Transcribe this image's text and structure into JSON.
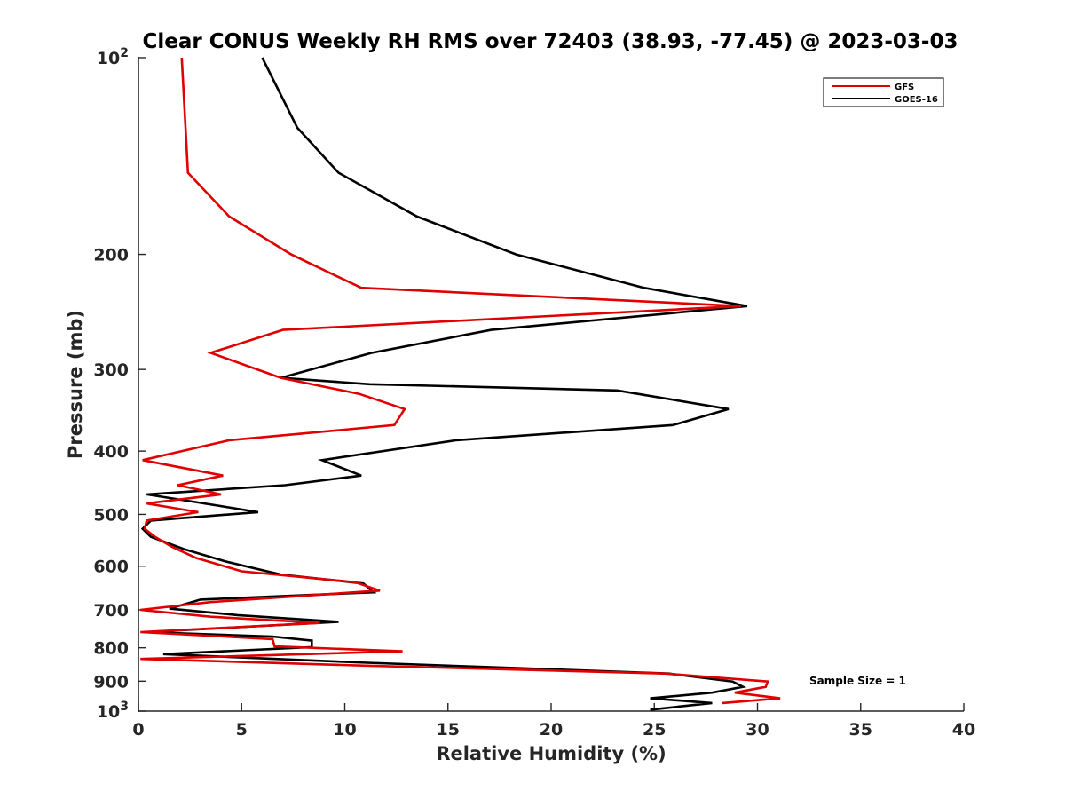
{
  "chart_data": {
    "type": "line",
    "title": "Clear CONUS Weekly RH RMS over 72403 (38.93, -77.45) @ 2023-03-03",
    "xlabel": "Relative Humidity (%)",
    "ylabel": "Pressure (mb)",
    "xlim": [
      0,
      40
    ],
    "ylim": [
      100,
      1000
    ],
    "y_scale": "log",
    "y_direction": "reversed",
    "x_ticks": [
      "0",
      "5",
      "10",
      "15",
      "20",
      "25",
      "30",
      "35",
      "40"
    ],
    "y_ticks": [
      {
        "value": 100,
        "base": "10",
        "exp": "2"
      },
      {
        "value": 200,
        "label": "200"
      },
      {
        "value": 300,
        "label": "300"
      },
      {
        "value": 400,
        "label": "400"
      },
      {
        "value": 500,
        "label": "500"
      },
      {
        "value": 600,
        "label": "600"
      },
      {
        "value": 700,
        "label": "700"
      },
      {
        "value": 800,
        "label": "800"
      },
      {
        "value": 900,
        "label": "900"
      },
      {
        "value": 1000,
        "base": "10",
        "exp": "3"
      }
    ],
    "grid": false,
    "legend_position": "top-right",
    "annotation": "Sample Size = 1",
    "series": [
      {
        "name": "GFS",
        "color": "#e00000",
        "points": [
          [
            2.1,
            100
          ],
          [
            2.4,
            150
          ],
          [
            4.4,
            175
          ],
          [
            7.4,
            200
          ],
          [
            10.8,
            225
          ],
          [
            29.2,
            240
          ],
          [
            7.0,
            261
          ],
          [
            3.5,
            283
          ],
          [
            6.9,
            309
          ],
          [
            10.7,
            327
          ],
          [
            12.9,
            345
          ],
          [
            12.4,
            365
          ],
          [
            4.4,
            385
          ],
          [
            0.2,
            413
          ],
          [
            4.1,
            436
          ],
          [
            1.9,
            451
          ],
          [
            4.0,
            466
          ],
          [
            0.4,
            481
          ],
          [
            2.9,
            496
          ],
          [
            0.4,
            511
          ],
          [
            0.3,
            526
          ],
          [
            0.8,
            541
          ],
          [
            1.6,
            560
          ],
          [
            2.8,
            583
          ],
          [
            5.0,
            611
          ],
          [
            10.5,
            635
          ],
          [
            11.7,
            654
          ],
          [
            3.5,
            681
          ],
          [
            0.1,
            700
          ],
          [
            3.5,
            717
          ],
          [
            8.8,
            733
          ],
          [
            0.1,
            757
          ],
          [
            6.5,
            776
          ],
          [
            6.6,
            796
          ],
          [
            12.8,
            810
          ],
          [
            0.1,
            832
          ],
          [
            11.0,
            852
          ],
          [
            25.5,
            876
          ],
          [
            30.5,
            901
          ],
          [
            30.4,
            918
          ],
          [
            28.9,
            937
          ],
          [
            31.1,
            956
          ],
          [
            28.3,
            972
          ]
        ]
      },
      {
        "name": "GOES-16",
        "color": "#000000",
        "points": [
          [
            6.0,
            100
          ],
          [
            7.7,
            128
          ],
          [
            9.7,
            150
          ],
          [
            13.5,
            175
          ],
          [
            18.3,
            200
          ],
          [
            24.5,
            225
          ],
          [
            29.5,
            240
          ],
          [
            17.1,
            261
          ],
          [
            11.3,
            283
          ],
          [
            6.9,
            309
          ],
          [
            11.2,
            316
          ],
          [
            23.2,
            323
          ],
          [
            28.6,
            345
          ],
          [
            25.9,
            365
          ],
          [
            15.4,
            385
          ],
          [
            8.9,
            413
          ],
          [
            10.8,
            436
          ],
          [
            7.1,
            451
          ],
          [
            0.4,
            466
          ],
          [
            3.2,
            481
          ],
          [
            5.8,
            496
          ],
          [
            0.6,
            511
          ],
          [
            0.2,
            526
          ],
          [
            0.6,
            541
          ],
          [
            2.2,
            565
          ],
          [
            4.2,
            590
          ],
          [
            6.9,
            618
          ],
          [
            10.9,
            638
          ],
          [
            11.4,
            658
          ],
          [
            3.0,
            675
          ],
          [
            1.5,
            697
          ],
          [
            4.8,
            713
          ],
          [
            9.7,
            730
          ],
          [
            0.4,
            757
          ],
          [
            6.5,
            769
          ],
          [
            8.4,
            780
          ],
          [
            8.4,
            798
          ],
          [
            1.2,
            818
          ],
          [
            10.5,
            842
          ],
          [
            25.7,
            876
          ],
          [
            28.8,
            901
          ],
          [
            29.3,
            918
          ],
          [
            27.8,
            937
          ],
          [
            24.8,
            956
          ],
          [
            27.8,
            972
          ],
          [
            24.8,
            995
          ]
        ]
      }
    ]
  }
}
